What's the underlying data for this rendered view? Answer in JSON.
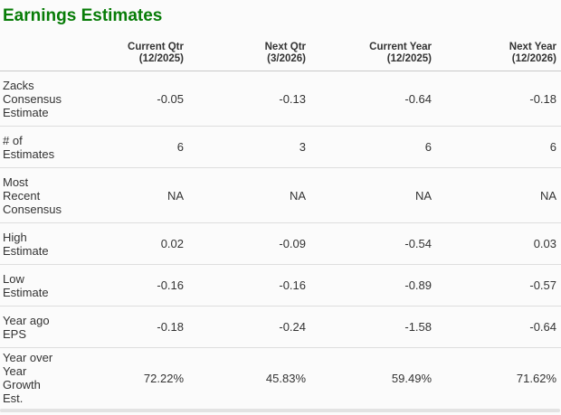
{
  "title": "Earnings Estimates",
  "colors": {
    "title_green": "#077c07",
    "text": "#333333",
    "row_divider": "#dedede",
    "header_divider": "#c9c9c9",
    "bottom_bar": "#e3e3e3"
  },
  "table": {
    "columns": [
      {
        "label": "Current Qtr",
        "period": "(12/2025)"
      },
      {
        "label": "Next Qtr",
        "period": "(3/2026)"
      },
      {
        "label": "Current Year",
        "period": "(12/2025)"
      },
      {
        "label": "Next Year",
        "period": "(12/2026)"
      }
    ],
    "rows": [
      {
        "label": "Zacks Consensus Estimate",
        "values": [
          "-0.05",
          "-0.13",
          "-0.64",
          "-0.18"
        ]
      },
      {
        "label": "# of Estimates",
        "values": [
          "6",
          "3",
          "6",
          "6"
        ]
      },
      {
        "label": "Most Recent Consensus",
        "values": [
          "NA",
          "NA",
          "NA",
          "NA"
        ]
      },
      {
        "label": "High Estimate",
        "values": [
          "0.02",
          "-0.09",
          "-0.54",
          "0.03"
        ]
      },
      {
        "label": "Low Estimate",
        "values": [
          "-0.16",
          "-0.16",
          "-0.89",
          "-0.57"
        ]
      },
      {
        "label": "Year ago EPS",
        "values": [
          "-0.18",
          "-0.24",
          "-1.58",
          "-0.64"
        ]
      },
      {
        "label": "Year over Year Growth Est.",
        "values": [
          "72.22%",
          "45.83%",
          "59.49%",
          "71.62%"
        ]
      }
    ]
  }
}
